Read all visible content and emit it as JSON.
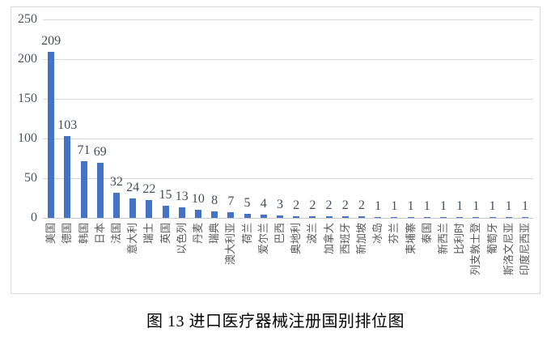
{
  "chart_data": {
    "type": "bar",
    "caption": "图 13  进口医疗器械注册国别排位图",
    "categories": [
      "美国",
      "德国",
      "韩国",
      "日本",
      "法国",
      "意大利",
      "瑞士",
      "英国",
      "以色列",
      "丹麦",
      "瑞典",
      "澳大利亚",
      "荷兰",
      "爱尔兰",
      "巴西",
      "奥地利",
      "波兰",
      "加拿大",
      "西班牙",
      "新加坡",
      "冰岛",
      "芬兰",
      "柬埔寨",
      "泰国",
      "新西兰",
      "比利时",
      "列支敦士登",
      "葡萄牙",
      "斯洛文尼亚",
      "印度尼西亚"
    ],
    "values": [
      209,
      103,
      71,
      69,
      32,
      24,
      22,
      15,
      13,
      10,
      8,
      7,
      5,
      4,
      3,
      2,
      2,
      2,
      2,
      2,
      1,
      1,
      1,
      1,
      1,
      1,
      1,
      1,
      1,
      1
    ],
    "yticks": [
      0,
      50,
      100,
      150,
      200,
      250
    ],
    "ylim": [
      0,
      250
    ],
    "xlabel": "",
    "ylabel": "",
    "grid": true,
    "data_labels": true,
    "legend": "none",
    "colors": {
      "bar": "#4472c4",
      "gridline": "#d9d9d9",
      "chart_border": "#d9d9d9",
      "value_label_text": "#454c59",
      "axis_label_text": "#595959",
      "caption_text": "#000000"
    }
  }
}
